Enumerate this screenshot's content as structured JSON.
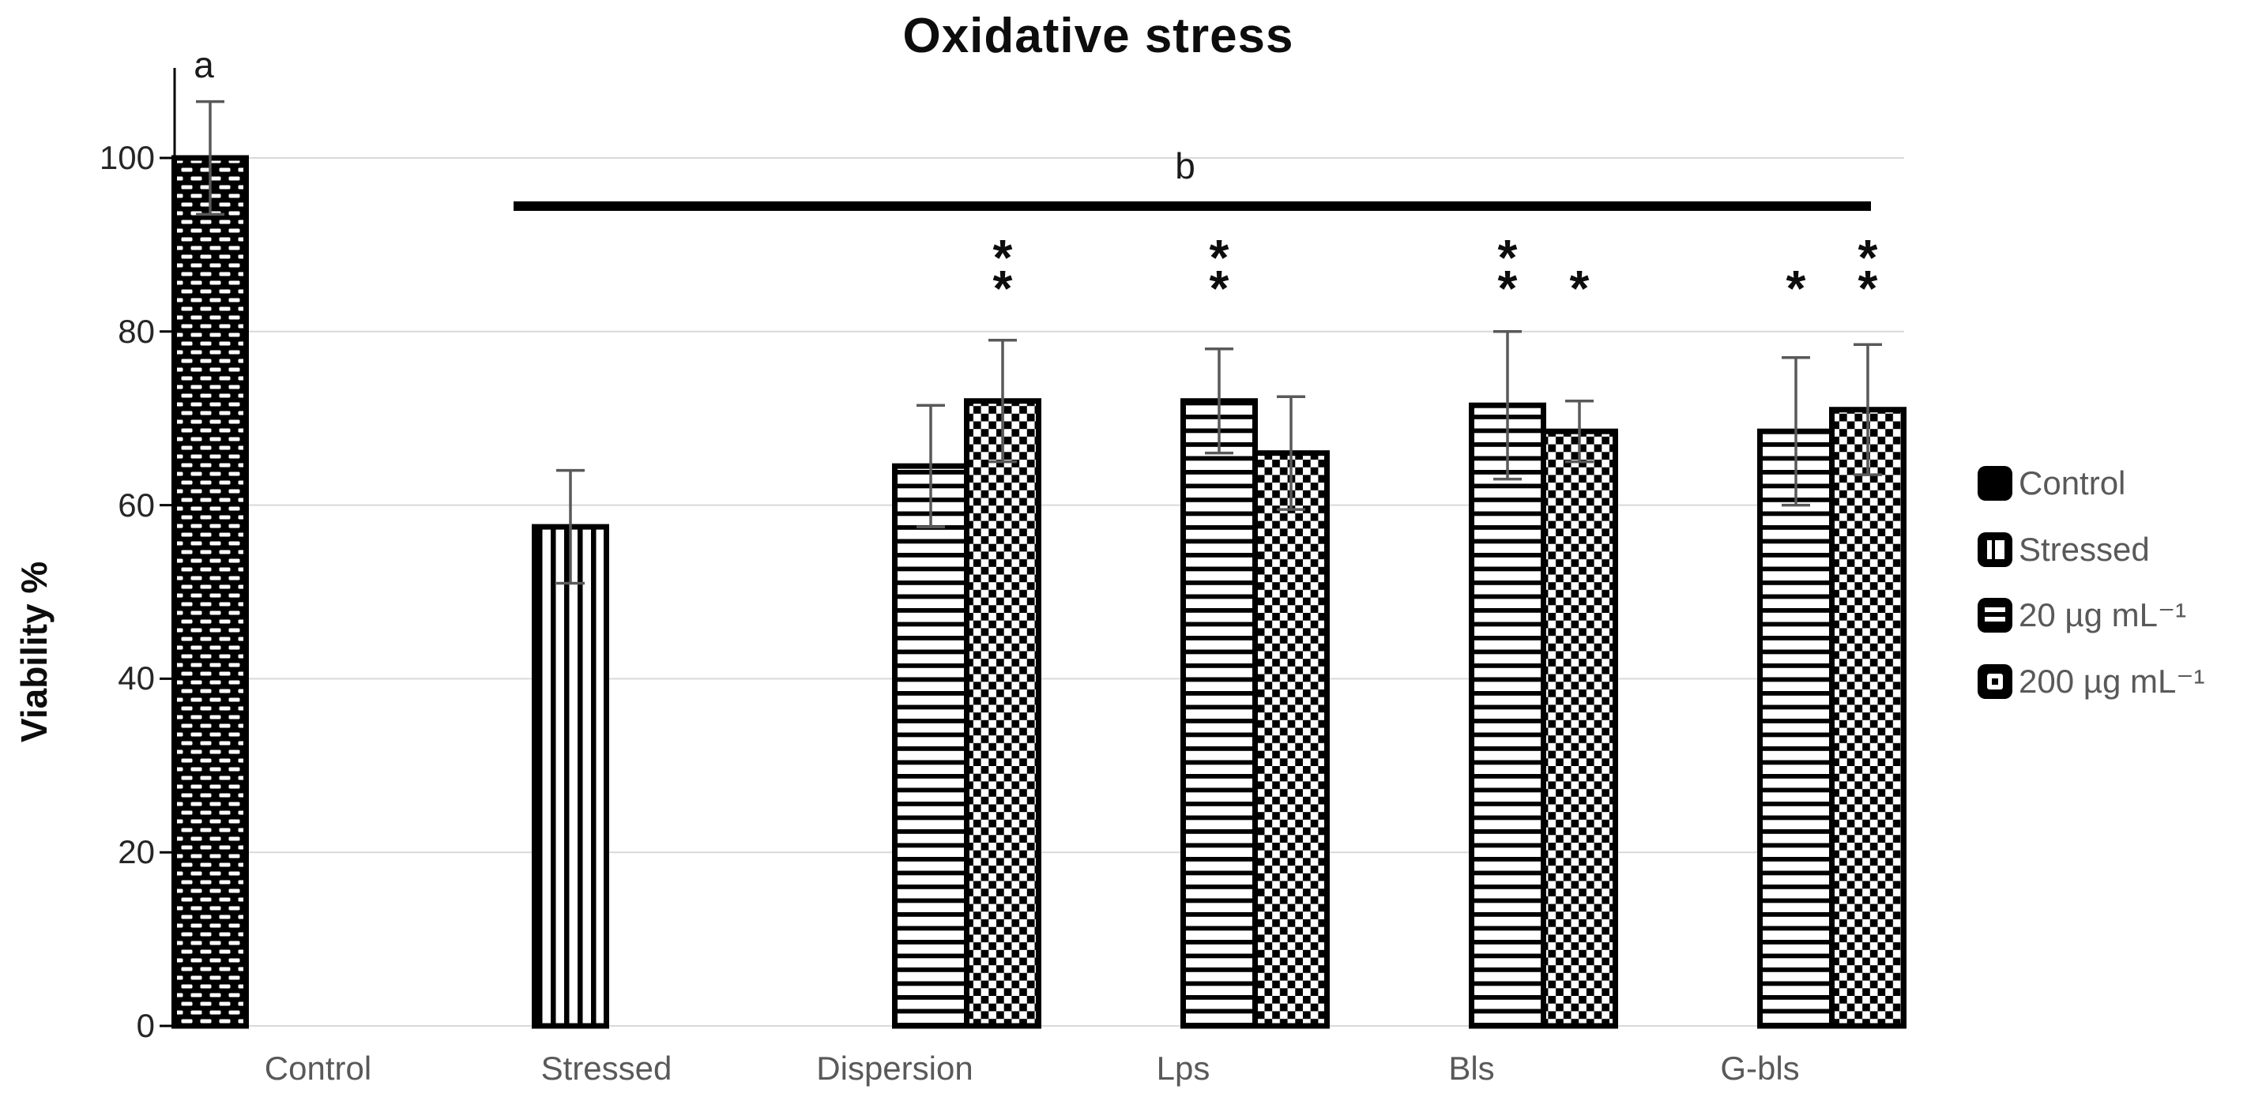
{
  "title": "Oxidative stress",
  "y_axis": {
    "label": "Viability %",
    "ticks": [
      "0",
      "20",
      "40",
      "60",
      "80",
      "100"
    ]
  },
  "x_axis": {
    "categories": [
      "Control",
      "Stressed",
      "Dispersion",
      "Lps",
      "Bls",
      "G-bls"
    ]
  },
  "legend": {
    "items": [
      {
        "label": "Control",
        "pattern": "solid"
      },
      {
        "label": "Stressed",
        "pattern": "vstripes"
      },
      {
        "label": "20 µg mL⁻¹",
        "pattern": "hstripes"
      },
      {
        "label": "200 µg mL⁻¹",
        "pattern": "checker"
      }
    ]
  },
  "annotations": {
    "control_letter": "a",
    "bracket_letter": "b"
  },
  "colors": {
    "bar_fill": "#000000",
    "error_bar": "#595959",
    "gridline": "#d9d9d9",
    "axis": "#000000",
    "category_text": "#595959",
    "tick_text": "#262626",
    "legend_text": "#595959",
    "sig_line": "#000000",
    "star": "#0d0d0d"
  },
  "chart_data": {
    "type": "bar",
    "title": "Oxidative stress",
    "xlabel": "",
    "ylabel": "Viability %",
    "ylim": [
      0,
      110
    ],
    "yticks": [
      0,
      20,
      40,
      60,
      80,
      100
    ],
    "grid": "horizontal",
    "legend_position": "right",
    "categories": [
      "Control",
      "Stressed",
      "Dispersion",
      "Lps",
      "Bls",
      "G-bls"
    ],
    "series": [
      {
        "name": "Control",
        "pattern": "solid",
        "values": [
          100,
          null,
          null,
          null,
          null,
          null
        ],
        "errors": [
          6.5,
          null,
          null,
          null,
          null,
          null
        ]
      },
      {
        "name": "Stressed",
        "pattern": "vstripes",
        "values": [
          null,
          57.5,
          null,
          null,
          null,
          null
        ],
        "errors": [
          null,
          6.5,
          null,
          null,
          null,
          null
        ]
      },
      {
        "name": "20 µg mL⁻¹",
        "pattern": "hstripes",
        "values": [
          null,
          null,
          64.5,
          72,
          71.5,
          68.5
        ],
        "errors": [
          null,
          null,
          7,
          6,
          8.5,
          8.5
        ]
      },
      {
        "name": "200 µg mL⁻¹",
        "pattern": "checker",
        "values": [
          null,
          null,
          72,
          66,
          68.5,
          71
        ],
        "errors": [
          null,
          null,
          7,
          6.5,
          3.5,
          7.5
        ]
      }
    ],
    "significance_marks": [
      {
        "category_index": 2,
        "series_index": 3,
        "mark": "**"
      },
      {
        "category_index": 3,
        "series_index": 2,
        "mark": "**"
      },
      {
        "category_index": 4,
        "series_index": 2,
        "mark": "**"
      },
      {
        "category_index": 4,
        "series_index": 3,
        "mark": "*"
      },
      {
        "category_index": 5,
        "series_index": 2,
        "mark": "*"
      },
      {
        "category_index": 5,
        "series_index": 3,
        "mark": "**"
      }
    ],
    "significance_line": {
      "label": "b",
      "spans": "Stressed to G-bls",
      "y_value": 94.5
    },
    "bar_letter": {
      "label": "a",
      "category": "Control",
      "y_value": 109
    }
  }
}
